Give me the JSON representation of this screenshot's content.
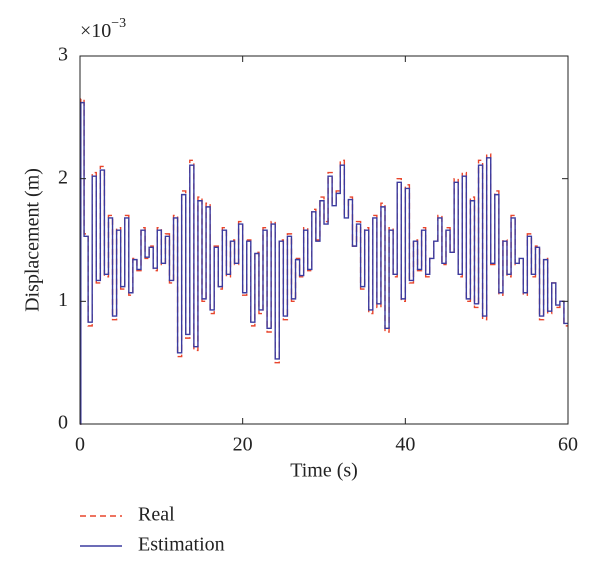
{
  "chart_data": {
    "type": "line",
    "drawstyle": "steps-post",
    "xlabel": "Time (s)",
    "ylabel": "Displacement (m)",
    "multiplier": {
      "base": "×10",
      "exponent": "−3"
    },
    "xlim": [
      0,
      60
    ],
    "ylim": [
      0,
      3
    ],
    "xticks": [
      0,
      20,
      40,
      60
    ],
    "yticks": [
      0,
      1,
      2,
      3
    ],
    "legend": "below-left",
    "x": [
      0,
      0.1,
      0.5,
      1,
      1.5,
      2,
      2.5,
      3,
      3.5,
      4,
      4.5,
      5,
      5.5,
      6,
      6.5,
      7,
      7.5,
      8,
      8.5,
      9,
      9.5,
      10,
      10.5,
      11,
      11.5,
      12,
      12.5,
      13,
      13.5,
      14,
      14.5,
      15,
      15.5,
      16,
      16.5,
      17,
      17.5,
      18,
      18.5,
      19,
      19.5,
      20,
      20.5,
      21,
      21.5,
      22,
      22.5,
      23,
      23.5,
      24,
      24.5,
      25,
      25.5,
      26,
      26.5,
      27,
      27.5,
      28,
      28.5,
      29,
      29.5,
      30,
      30.5,
      31,
      31.5,
      32,
      32.5,
      33,
      33.5,
      34,
      34.5,
      35,
      35.5,
      36,
      36.5,
      37,
      37.5,
      38,
      38.5,
      39,
      39.5,
      40,
      40.5,
      41,
      41.5,
      42,
      42.5,
      43,
      43.5,
      44,
      44.5,
      45,
      45.5,
      46,
      46.5,
      47,
      47.5,
      48,
      48.5,
      49,
      49.5,
      50,
      50.5,
      51,
      51.5,
      52,
      52.5,
      53,
      53.5,
      54,
      54.5,
      55,
      55.5,
      56,
      56.5,
      57,
      57.5,
      58,
      58.5,
      59,
      59.5,
      60
    ],
    "series": [
      {
        "name": "Real",
        "color": "#e8452c",
        "dash": true,
        "values": [
          0,
          2.65,
          1.55,
          0.8,
          2.05,
          1.15,
          2.1,
          1.2,
          1.7,
          0.85,
          1.6,
          1.1,
          1.7,
          1.05,
          1.35,
          1.25,
          1.6,
          1.35,
          1.45,
          1.25,
          1.6,
          1.3,
          1.55,
          1.15,
          1.7,
          0.55,
          1.9,
          0.7,
          2.15,
          0.6,
          1.85,
          1.0,
          1.8,
          0.9,
          1.45,
          1.1,
          1.6,
          1.2,
          1.5,
          1.3,
          1.65,
          1.05,
          1.5,
          0.8,
          1.4,
          0.9,
          1.6,
          0.75,
          1.65,
          0.5,
          1.5,
          0.85,
          1.55,
          1.0,
          1.35,
          1.2,
          1.6,
          1.25,
          1.75,
          1.5,
          1.85,
          1.65,
          2.05,
          1.8,
          1.9,
          2.15,
          1.7,
          1.85,
          1.45,
          1.65,
          1.1,
          1.6,
          0.9,
          1.7,
          0.95,
          1.8,
          0.75,
          1.6,
          1.2,
          2.0,
          1.0,
          1.95,
          1.15,
          1.5,
          1.25,
          1.6,
          1.2,
          1.35,
          1.5,
          1.7,
          1.3,
          1.6,
          1.4,
          2.0,
          1.2,
          2.05,
          1.0,
          1.85,
          0.95,
          2.15,
          0.85,
          2.2,
          1.3,
          1.9,
          1.05,
          1.5,
          1.2,
          1.7,
          1.3,
          1.35,
          1.05,
          1.55,
          1.2,
          1.45,
          0.85,
          1.35,
          0.9,
          1.15,
          0.95,
          1.0,
          0.8,
          0.8
        ]
      },
      {
        "name": "Estimation",
        "color": "#3b3b9f",
        "dash": false,
        "values": [
          0,
          2.62,
          1.53,
          0.83,
          2.02,
          1.17,
          2.07,
          1.22,
          1.68,
          0.88,
          1.58,
          1.12,
          1.68,
          1.07,
          1.34,
          1.26,
          1.58,
          1.36,
          1.44,
          1.27,
          1.58,
          1.31,
          1.53,
          1.17,
          1.68,
          0.58,
          1.87,
          0.73,
          2.11,
          0.63,
          1.82,
          1.02,
          1.77,
          0.93,
          1.44,
          1.12,
          1.58,
          1.22,
          1.49,
          1.31,
          1.63,
          1.07,
          1.49,
          0.83,
          1.39,
          0.93,
          1.58,
          0.78,
          1.63,
          0.53,
          1.49,
          0.88,
          1.53,
          1.02,
          1.34,
          1.21,
          1.58,
          1.26,
          1.73,
          1.49,
          1.82,
          1.63,
          2.02,
          1.78,
          1.88,
          2.11,
          1.68,
          1.83,
          1.45,
          1.63,
          1.12,
          1.58,
          0.93,
          1.68,
          0.98,
          1.77,
          0.78,
          1.58,
          1.22,
          1.97,
          1.02,
          1.92,
          1.17,
          1.49,
          1.26,
          1.58,
          1.22,
          1.35,
          1.49,
          1.68,
          1.31,
          1.58,
          1.4,
          1.97,
          1.22,
          2.02,
          1.02,
          1.82,
          0.98,
          2.11,
          0.88,
          2.17,
          1.31,
          1.87,
          1.07,
          1.49,
          1.22,
          1.68,
          1.31,
          1.35,
          1.07,
          1.53,
          1.22,
          1.44,
          0.88,
          1.34,
          0.92,
          1.15,
          0.97,
          1.0,
          0.82,
          0.82
        ]
      }
    ]
  }
}
